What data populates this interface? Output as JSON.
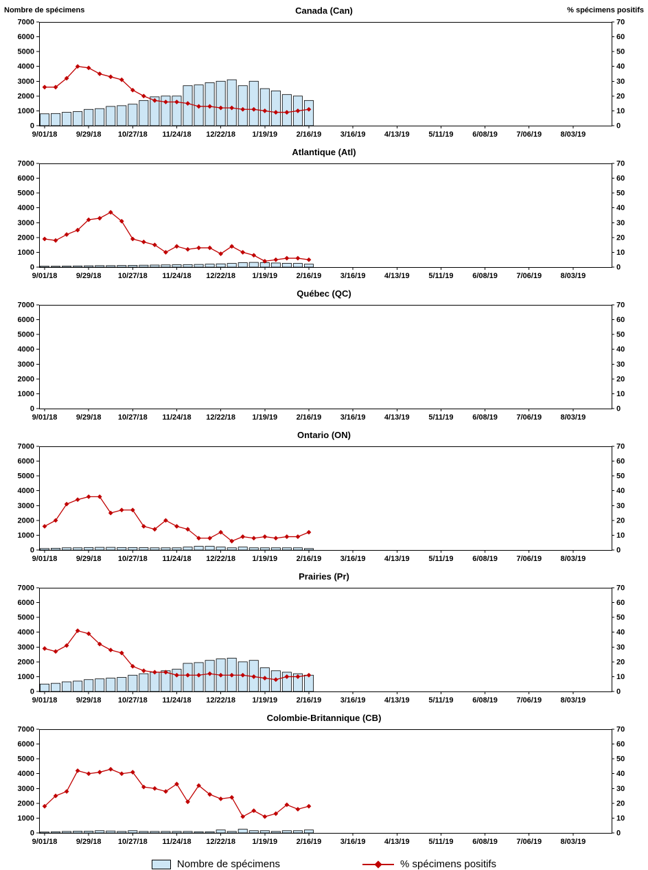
{
  "page": {
    "left_axis_title": "Nombre de spécimens",
    "right_axis_title": "% spécimens positifs"
  },
  "legend": {
    "bars_label": "Nombre de spécimens",
    "line_label": "% spécimens positifs"
  },
  "colors": {
    "bar_fill": "#cde6f5",
    "bar_border": "#000000",
    "line": "#c00000"
  },
  "chart_data": [
    {
      "type": "bar+line",
      "title": "Canada (Can)",
      "left_ylabel": "Nombre de spécimens",
      "right_ylabel": "% spécimens positifs",
      "left_ylim": [
        0,
        7000
      ],
      "right_ylim": [
        0,
        70
      ],
      "left_yticks": [
        0,
        1000,
        2000,
        3000,
        4000,
        5000,
        6000,
        7000
      ],
      "right_yticks": [
        0,
        10,
        20,
        30,
        40,
        50,
        60,
        70
      ],
      "x_tick_labels": [
        "9/01/18",
        "9/29/18",
        "10/27/18",
        "11/24/18",
        "12/22/18",
        "1/19/19",
        "2/16/19",
        "3/16/19",
        "4/13/19",
        "5/11/19",
        "6/08/19",
        "7/06/19",
        "8/03/19"
      ],
      "weeks_total": 52,
      "bars": [
        800,
        820,
        900,
        950,
        1100,
        1150,
        1300,
        1350,
        1450,
        1700,
        1950,
        2000,
        2000,
        2700,
        2750,
        2900,
        3000,
        3100,
        2700,
        3000,
        2500,
        2350,
        2100,
        2000,
        1700
      ],
      "pct_positive": [
        26,
        26,
        32,
        40,
        39,
        35,
        33,
        31,
        24,
        20,
        17,
        16,
        16,
        15,
        13,
        13,
        12,
        12,
        11,
        11,
        10,
        9,
        9,
        10,
        11
      ]
    },
    {
      "type": "bar+line",
      "title": "Atlantique (Atl)",
      "left_ylim": [
        0,
        7000
      ],
      "right_ylim": [
        0,
        70
      ],
      "left_yticks": [
        0,
        1000,
        2000,
        3000,
        4000,
        5000,
        6000,
        7000
      ],
      "right_yticks": [
        0,
        10,
        20,
        30,
        40,
        50,
        60,
        70
      ],
      "x_tick_labels": [
        "9/01/18",
        "9/29/18",
        "10/27/18",
        "11/24/18",
        "12/22/18",
        "1/19/19",
        "2/16/19",
        "3/16/19",
        "4/13/19",
        "5/11/19",
        "6/08/19",
        "7/06/19",
        "8/03/19"
      ],
      "weeks_total": 52,
      "bars": [
        60,
        60,
        70,
        80,
        90,
        100,
        100,
        110,
        120,
        130,
        140,
        150,
        160,
        170,
        180,
        200,
        220,
        250,
        300,
        320,
        300,
        280,
        260,
        250,
        200
      ],
      "pct_positive": [
        19,
        18,
        22,
        25,
        32,
        33,
        37,
        31,
        19,
        17,
        15,
        10,
        14,
        12,
        13,
        13,
        9,
        14,
        10,
        8,
        4,
        5,
        6,
        6,
        5
      ]
    },
    {
      "type": "bar+line",
      "title": "Québec (QC)",
      "left_ylim": [
        0,
        7000
      ],
      "right_ylim": [
        0,
        70
      ],
      "left_yticks": [
        0,
        1000,
        2000,
        3000,
        4000,
        5000,
        6000,
        7000
      ],
      "right_yticks": [
        0,
        10,
        20,
        30,
        40,
        50,
        60,
        70
      ],
      "x_tick_labels": [
        "9/01/18",
        "9/29/18",
        "10/27/18",
        "11/24/18",
        "12/22/18",
        "1/19/19",
        "2/16/19",
        "3/16/19",
        "4/13/19",
        "5/11/19",
        "6/08/19",
        "7/06/19",
        "8/03/19"
      ],
      "weeks_total": 52,
      "bars": [],
      "pct_positive": []
    },
    {
      "type": "bar+line",
      "title": "Ontario (ON)",
      "left_ylim": [
        0,
        7000
      ],
      "right_ylim": [
        0,
        70
      ],
      "left_yticks": [
        0,
        1000,
        2000,
        3000,
        4000,
        5000,
        6000,
        7000
      ],
      "right_yticks": [
        0,
        10,
        20,
        30,
        40,
        50,
        60,
        70
      ],
      "x_tick_labels": [
        "9/01/18",
        "9/29/18",
        "10/27/18",
        "11/24/18",
        "12/22/18",
        "1/19/19",
        "2/16/19",
        "3/16/19",
        "4/13/19",
        "5/11/19",
        "6/08/19",
        "7/06/19",
        "8/03/19"
      ],
      "weeks_total": 52,
      "bars": [
        100,
        120,
        150,
        150,
        170,
        180,
        180,
        170,
        170,
        160,
        150,
        150,
        150,
        200,
        250,
        250,
        200,
        150,
        200,
        150,
        150,
        150,
        150,
        150,
        100
      ],
      "pct_positive": [
        16,
        20,
        31,
        34,
        36,
        36,
        25,
        27,
        27,
        16,
        14,
        20,
        16,
        14,
        8,
        8,
        12,
        6,
        9,
        8,
        9,
        8,
        9,
        9,
        12
      ]
    },
    {
      "type": "bar+line",
      "title": "Prairies (Pr)",
      "left_ylim": [
        0,
        7000
      ],
      "right_ylim": [
        0,
        70
      ],
      "left_yticks": [
        0,
        1000,
        2000,
        3000,
        4000,
        5000,
        6000,
        7000
      ],
      "right_yticks": [
        0,
        10,
        20,
        30,
        40,
        50,
        60,
        70
      ],
      "x_tick_labels": [
        "9/01/18",
        "9/29/18",
        "10/27/18",
        "11/24/18",
        "12/22/18",
        "1/19/19",
        "2/16/19",
        "3/16/19",
        "4/13/19",
        "5/11/19",
        "6/08/19",
        "7/06/19",
        "8/03/19"
      ],
      "weeks_total": 52,
      "bars": [
        500,
        550,
        650,
        700,
        800,
        850,
        900,
        950,
        1100,
        1200,
        1300,
        1400,
        1500,
        1900,
        1950,
        2100,
        2200,
        2250,
        2000,
        2100,
        1600,
        1400,
        1300,
        1200,
        1100
      ],
      "pct_positive": [
        29,
        27,
        31,
        41,
        39,
        32,
        28,
        26,
        17,
        14,
        13,
        13,
        11,
        11,
        11,
        12,
        11,
        11,
        11,
        10,
        9,
        8,
        10,
        10,
        11
      ]
    },
    {
      "type": "bar+line",
      "title": "Colombie-Britannique (CB)",
      "left_ylim": [
        0,
        7000
      ],
      "right_ylim": [
        0,
        70
      ],
      "left_yticks": [
        0,
        1000,
        2000,
        3000,
        4000,
        5000,
        6000,
        7000
      ],
      "right_yticks": [
        0,
        10,
        20,
        30,
        40,
        50,
        60,
        70
      ],
      "x_tick_labels": [
        "9/01/18",
        "9/29/18",
        "10/27/18",
        "11/24/18",
        "12/22/18",
        "1/19/19",
        "2/16/19",
        "3/16/19",
        "4/13/19",
        "5/11/19",
        "6/08/19",
        "7/06/19",
        "8/03/19"
      ],
      "weeks_total": 52,
      "bars": [
        60,
        80,
        100,
        120,
        120,
        150,
        130,
        100,
        150,
        100,
        100,
        100,
        100,
        100,
        80,
        80,
        200,
        100,
        250,
        150,
        150,
        100,
        150,
        150,
        200
      ],
      "pct_positive": [
        18,
        25,
        28,
        42,
        40,
        41,
        43,
        40,
        41,
        31,
        30,
        28,
        33,
        21,
        32,
        26,
        23,
        24,
        11,
        15,
        11,
        13,
        19,
        16,
        18
      ]
    }
  ]
}
